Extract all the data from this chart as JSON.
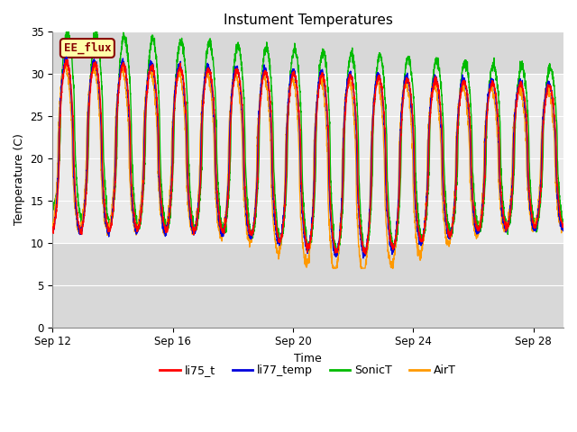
{
  "title": "Instument Temperatures",
  "xlabel": "Time",
  "ylabel": "Temperature (C)",
  "ylim": [
    0,
    35
  ],
  "yticks": [
    0,
    5,
    10,
    15,
    20,
    25,
    30,
    35
  ],
  "xtick_labels": [
    "Sep 12",
    "Sep 16",
    "Sep 20",
    "Sep 24",
    "Sep 28"
  ],
  "xtick_positions": [
    0,
    4,
    8,
    12,
    16
  ],
  "xlim": [
    0,
    17
  ],
  "colors": {
    "li75_t": "#ff0000",
    "li77_temp": "#0000dd",
    "SonicT": "#00bb00",
    "AirT": "#ff9900"
  },
  "ee_flux_label": "EE_flux",
  "ee_flux_bg": "#ffffaa",
  "ee_flux_border": "#880000",
  "shaded_band_y1": 10,
  "shaded_band_y2": 30,
  "plot_bg_color": "#d8d8d8",
  "band_color": "#ebebeb",
  "legend_labels": [
    "li75_t",
    "li77_temp",
    "SonicT",
    "AirT"
  ],
  "figsize": [
    6.4,
    4.8
  ],
  "dpi": 100,
  "n_days": 17,
  "n_points": 3400
}
